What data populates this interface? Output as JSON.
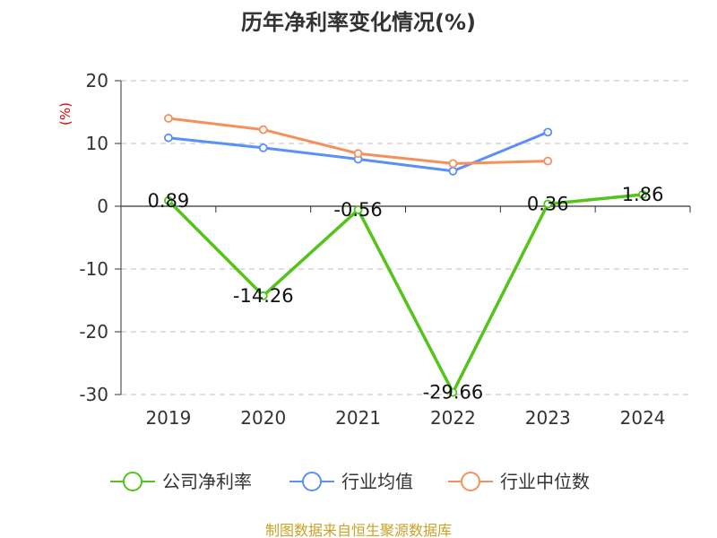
{
  "chart_data": {
    "type": "line",
    "title": "历年净利率变化情况(%)",
    "ylabel": "(%)",
    "xlabel": "",
    "categories": [
      "2019",
      "2020",
      "2021",
      "2022",
      "2023",
      "2024"
    ],
    "ylim": [
      -30,
      20
    ],
    "yticks": [
      20,
      10,
      0,
      -10,
      -20,
      -30
    ],
    "grid": true,
    "legend_position": "bottom",
    "series": [
      {
        "name": "公司净利率",
        "color": "#52c41a",
        "values": [
          0.89,
          -14.26,
          -0.56,
          -29.66,
          0.36,
          1.86
        ],
        "labels": [
          "0.89",
          "-14.26",
          "-0.56",
          "-29.66",
          "0.36",
          "1.86"
        ]
      },
      {
        "name": "行业均值",
        "color": "#5b8ff9",
        "values": [
          10.9,
          9.3,
          7.5,
          5.6,
          11.8,
          null
        ]
      },
      {
        "name": "行业中位数",
        "color": "#f6905b",
        "values": [
          14.0,
          12.2,
          8.4,
          6.8,
          7.2,
          null
        ]
      }
    ],
    "source_note": "制图数据来自恒生聚源数据库"
  },
  "colors": {
    "title": "#333333",
    "ylabel": "#e00000",
    "axis": "#333333",
    "grid": "#cccccc",
    "source_note": "#c9a227"
  }
}
